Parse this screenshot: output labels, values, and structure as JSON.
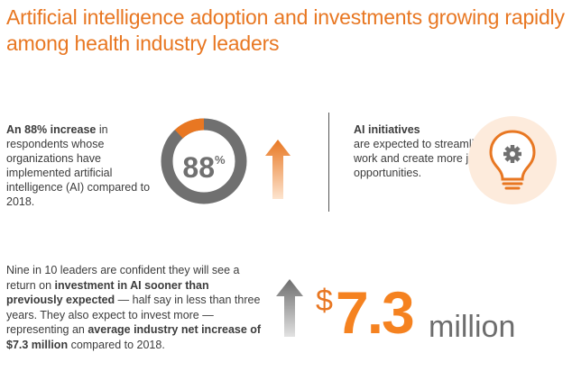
{
  "title": "Artificial intelligence adoption and investments growing rapidly among health industry leaders",
  "stat": {
    "lead": "An 88% increase",
    "rest": " in respondents whose organizations have implemented artificial intelligence (AI) compared to 2018.",
    "value": "88",
    "unit": "%",
    "percent": 88
  },
  "ai": {
    "lead": "AI initiatives",
    "rest": "are expected to streamline work and create more job opportunities."
  },
  "investment": {
    "p1": "Nine in 10 leaders are confident they will see a return on ",
    "b1": "investment in AI sooner than previously expected",
    "p2": " — half say in less than three years. They also expect to invest more — representing an ",
    "b2": "average industry net increase of $7.3 million",
    "p3": " compared to 2018."
  },
  "amount": {
    "currency": "$",
    "value": "7.3",
    "unit": "million"
  },
  "colors": {
    "accent": "#e87722",
    "gray": "#707070",
    "light": "#fdebdc"
  },
  "icons": [
    "up-arrow-icon",
    "lightbulb-gear-icon"
  ]
}
